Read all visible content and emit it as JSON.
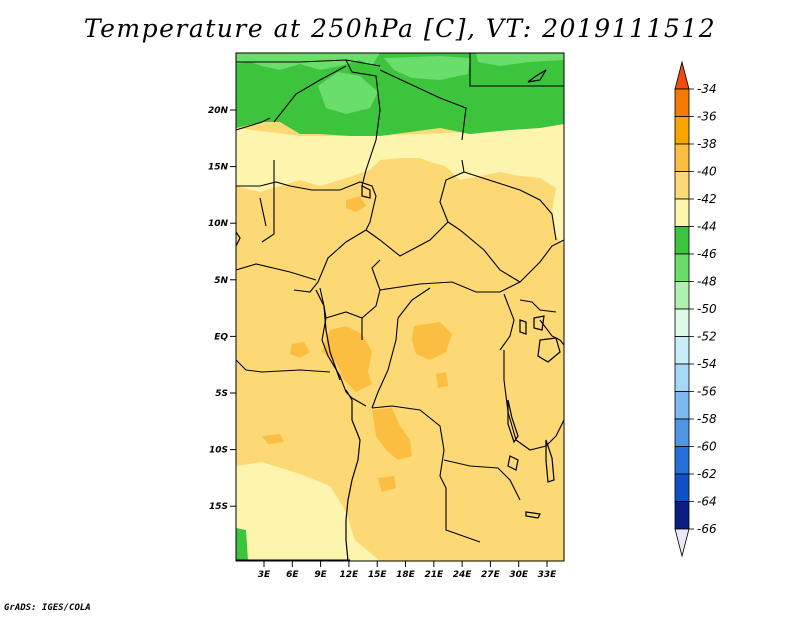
{
  "title": "Temperature at 250hPa [C], VT: 2019111512",
  "footer": "GrADS: IGES/COLA",
  "map": {
    "lat_labels": [
      "20N",
      "15N",
      "10N",
      "5N",
      "EQ",
      "5S",
      "10S",
      "15S"
    ],
    "lon_labels": [
      "3E",
      "6E",
      "9E",
      "12E",
      "15E",
      "18E",
      "21E",
      "24E",
      "27E",
      "30E",
      "33E"
    ]
  },
  "colorbar": {
    "labels": [
      "-34",
      "-36",
      "-38",
      "-40",
      "-42",
      "-44",
      "-46",
      "-48",
      "-50",
      "-52",
      "-54",
      "-56",
      "-58",
      "-60",
      "-62",
      "-64",
      "-66"
    ],
    "colors": [
      "#f04a10",
      "#f57a00",
      "#f7a600",
      "#fbbe40",
      "#fcd975",
      "#fdf5ad",
      "#3cc43c",
      "#6ade6a",
      "#aef2ae",
      "#dcfae6",
      "#c8ecfa",
      "#a6d8f6",
      "#7ebaf0",
      "#4f96e6",
      "#2670dc",
      "#1050c4",
      "#0a1e82",
      "#e8e8f8"
    ]
  }
}
